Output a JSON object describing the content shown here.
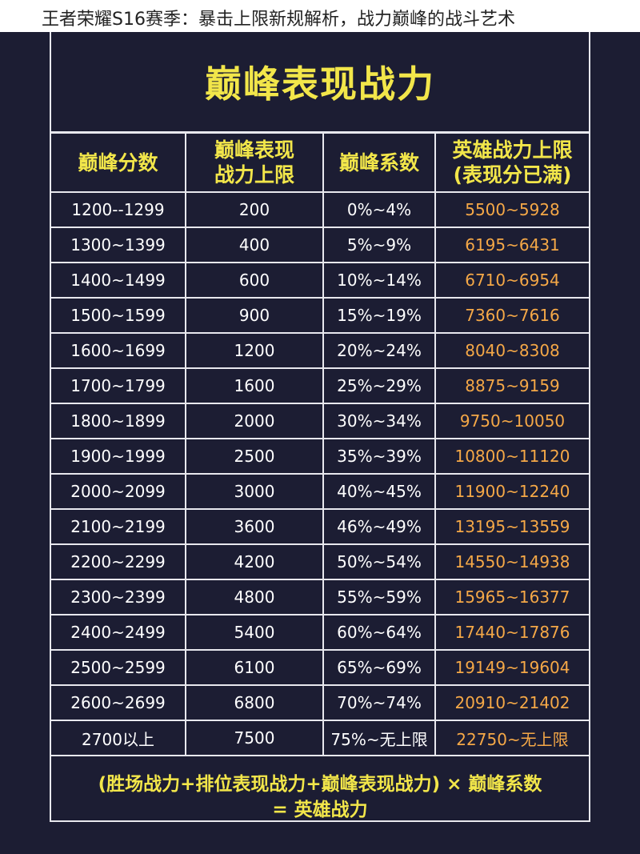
{
  "caption": "王者荣耀S16赛季：暴击上限新规解析，战力巅峰的战斗艺术",
  "title": "巅峰表现战力",
  "headers": [
    "巅峰分数",
    "巅峰表现\n战力上限",
    "巅峰系数",
    "英雄战力上限\n(表现分已满)"
  ],
  "rows": [
    [
      "1200--1299",
      "200",
      "0%~4%",
      "5500~5928"
    ],
    [
      "1300~1399",
      "400",
      "5%~9%",
      "6195~6431"
    ],
    [
      "1400~1499",
      "600",
      "10%~14%",
      "6710~6954"
    ],
    [
      "1500~1599",
      "900",
      "15%~19%",
      "7360~7616"
    ],
    [
      "1600~1699",
      "1200",
      "20%~24%",
      "8040~8308"
    ],
    [
      "1700~1799",
      "1600",
      "25%~29%",
      "8875~9159"
    ],
    [
      "1800~1899",
      "2000",
      "30%~34%",
      "9750~10050"
    ],
    [
      "1900~1999",
      "2500",
      "35%~39%",
      "10800~11120"
    ],
    [
      "2000~2099",
      "3000",
      "40%~45%",
      "11900~12240"
    ],
    [
      "2100~2199",
      "3600",
      "46%~49%",
      "13195~13559"
    ],
    [
      "2200~2299",
      "4200",
      "50%~54%",
      "14550~14938"
    ],
    [
      "2300~2399",
      "4800",
      "55%~59%",
      "15965~16377"
    ],
    [
      "2400~2499",
      "5400",
      "60%~64%",
      "17440~17876"
    ],
    [
      "2500~2599",
      "6100",
      "65%~69%",
      "19149~19604"
    ],
    [
      "2600~2699",
      "6800",
      "70%~74%",
      "20910~21402"
    ],
    [
      "2700以上",
      "7500",
      "75%~无上限",
      "22750~无上限"
    ]
  ],
  "formula": {
    "line1": "(胜场战力+排位表现战力+巅峰表现战力) × 巅峰系数",
    "line2": "= 英雄战力"
  },
  "colors": {
    "background": "#1c1d33",
    "title": "#f2e64a",
    "hero_value": "#f5a847",
    "grid": "#e8e8ee"
  }
}
